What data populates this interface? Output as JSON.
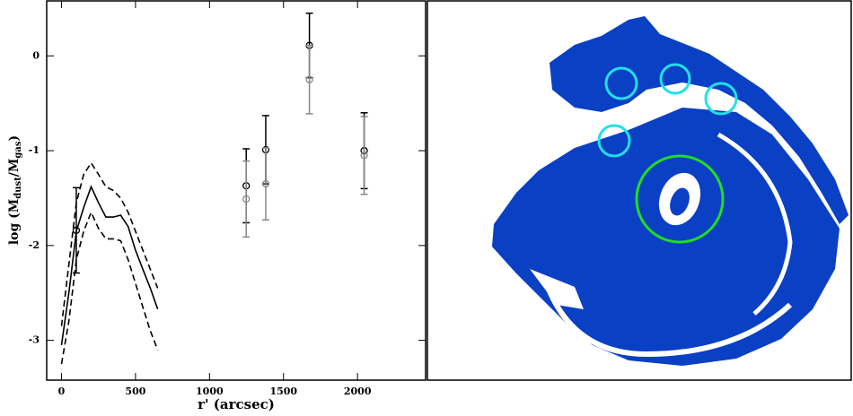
{
  "chart_data": {
    "type": "line",
    "xlabel": "r' (arcsec)",
    "ylabel_parts": [
      "log (M",
      "dust",
      "/M",
      "gas",
      ")"
    ],
    "xlim": [
      -100,
      2460
    ],
    "ylim": [
      -3.42,
      0.58
    ],
    "xticks": [
      0,
      500,
      1000,
      1500,
      2000
    ],
    "yticks": [
      0,
      -1,
      -2,
      -3
    ],
    "series": [
      {
        "color": "#000000",
        "style": "solid",
        "x": [
          0,
          50,
          100,
          150,
          200,
          250,
          300,
          350,
          400,
          450,
          500,
          550,
          600,
          650
        ],
        "values": [
          -3.05,
          -2.5,
          -1.85,
          -1.6,
          -1.38,
          -1.55,
          -1.7,
          -1.7,
          -1.68,
          -1.8,
          -2.05,
          -2.25,
          -2.45,
          -2.67
        ]
      },
      {
        "color": "#000000",
        "style": "dashed",
        "x": [
          0,
          50,
          100,
          150,
          200,
          250,
          300,
          350,
          400,
          450,
          500,
          550,
          600,
          650
        ],
        "values": [
          -2.85,
          -2.2,
          -1.55,
          -1.25,
          -1.13,
          -1.25,
          -1.38,
          -1.42,
          -1.5,
          -1.65,
          -1.85,
          -2.05,
          -2.25,
          -2.45
        ]
      },
      {
        "color": "#000000",
        "style": "dashed",
        "x": [
          0,
          50,
          100,
          150,
          200,
          250,
          300,
          350,
          400,
          450,
          500,
          550,
          600,
          650
        ],
        "values": [
          -3.25,
          -2.8,
          -2.15,
          -1.85,
          -1.65,
          -1.82,
          -1.93,
          -1.93,
          -1.95,
          -2.15,
          -2.4,
          -2.65,
          -2.9,
          -3.1
        ]
      },
      {
        "color": "#000000",
        "style": "points",
        "x": [
          100,
          1248,
          1380,
          1675,
          2045
        ],
        "values": [
          -1.84,
          -1.37,
          -0.99,
          0.11,
          -1.0
        ],
        "errors": [
          0.45,
          0.39,
          0.36,
          0.34,
          0.4
        ]
      },
      {
        "color": "#888888",
        "style": "points",
        "x": [
          1248,
          1380,
          1675,
          2045
        ],
        "values": [
          -1.51,
          -1.35,
          -0.25,
          -1.05
        ],
        "errors": [
          0.4,
          0.38,
          0.36,
          0.41
        ]
      }
    ]
  }
}
